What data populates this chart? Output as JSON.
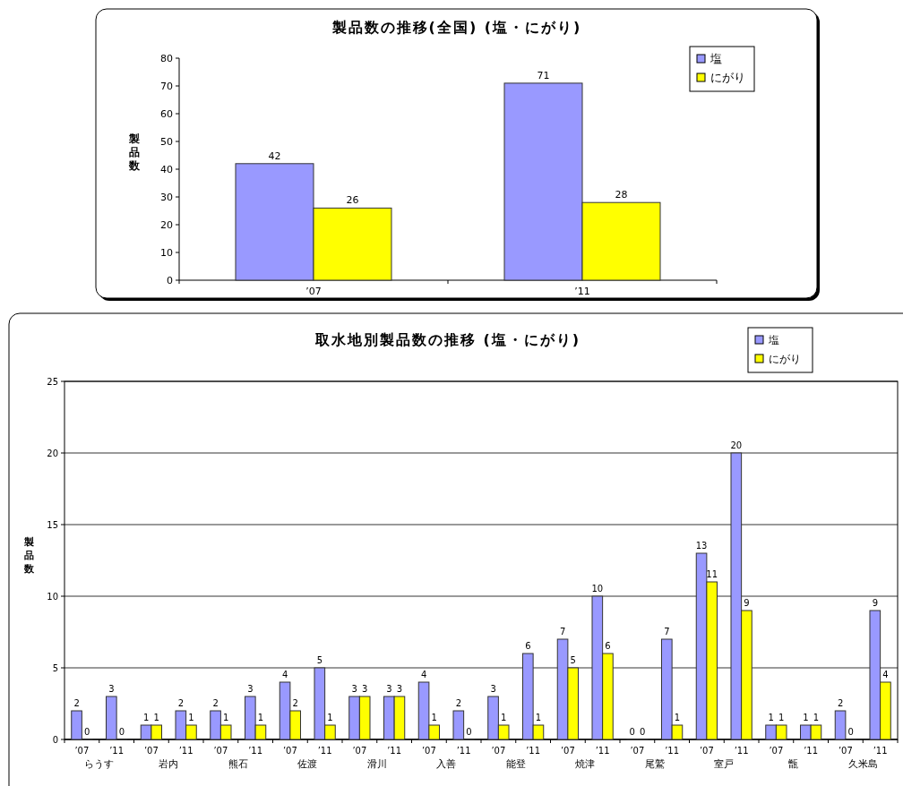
{
  "chart_data": [
    {
      "type": "bar",
      "title": "製品数の推移(全国) (塩・にがり)",
      "ylabel": "製品数",
      "categories": [
        "’07",
        "’11"
      ],
      "series": [
        {
          "name": "塩",
          "color": "#9999ff",
          "values": [
            42,
            71
          ]
        },
        {
          "name": "にがり",
          "color": "#ffff00",
          "values": [
            26,
            28
          ]
        }
      ],
      "ylim": [
        0,
        80
      ],
      "yticks": [
        0,
        10,
        20,
        30,
        40,
        50,
        60,
        70,
        80
      ],
      "grid": false,
      "legend": "top right",
      "data_labels": true
    },
    {
      "type": "bar",
      "title": "取水地別製品数の推移 (塩・にがり)",
      "ylabel": "製品数",
      "categories": [
        "’07\nらうす",
        "’11",
        "’07\n岩内",
        "’11",
        "’07\n熊石",
        "’11",
        "’07\n佐渡",
        "’11",
        "’07\n滑川",
        "’11",
        "’07\n入善",
        "’11",
        "’07\n能登",
        "’11",
        "’07\n焼津",
        "’11",
        "’07\n尾鷲",
        "’11",
        "’07\n室戸",
        "’11",
        "’07\n甑",
        "’11",
        "’07\n久米島",
        "’11"
      ],
      "series": [
        {
          "name": "塩",
          "color": "#9999ff",
          "values": [
            2,
            3,
            1,
            2,
            2,
            3,
            4,
            5,
            3,
            3,
            4,
            2,
            3,
            6,
            7,
            10,
            0,
            7,
            13,
            20,
            1,
            1,
            2,
            9
          ]
        },
        {
          "name": "にがり",
          "color": "#ffff00",
          "values": [
            0,
            0,
            1,
            1,
            1,
            1,
            2,
            1,
            3,
            3,
            1,
            0,
            1,
            1,
            5,
            6,
            0,
            1,
            11,
            9,
            1,
            1,
            0,
            4
          ]
        }
      ],
      "ylim": [
        0,
        25
      ],
      "yticks": [
        0,
        5,
        10,
        15,
        20,
        25
      ],
      "grid": "y",
      "legend": "top right",
      "data_labels": true
    }
  ]
}
